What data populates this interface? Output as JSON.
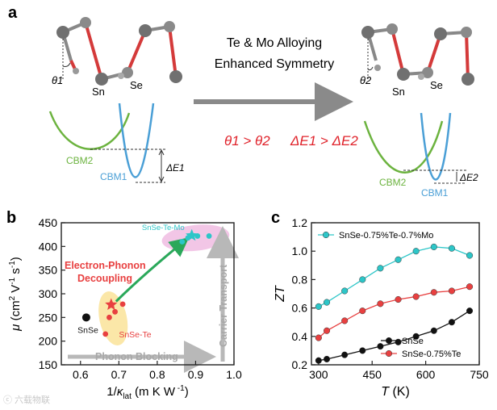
{
  "panel_a": {
    "label": "a",
    "arrow_text_line1": "Te & Mo Alloying",
    "arrow_text_line2": "Enhanced Symmetry",
    "theta_left": "θ1",
    "theta_right": "θ2",
    "sn_label": "Sn",
    "se_label": "Se",
    "cbm2_label": "CBM2",
    "cbm1_label": "CBM1",
    "delta_e1": "ΔE1",
    "delta_e2": "ΔE2",
    "relation_theta": "θ1 > θ2",
    "relation_e": "ΔE1 > ΔE2",
    "colors": {
      "cbm2": "#6cb33f",
      "cbm1": "#4a9fd6",
      "relation": "#e0232b",
      "sn_atom": "#707070",
      "se_atom": "#8a8a8a",
      "bond_grey": "#888888",
      "bond_red": "#d43a3a",
      "arrow": "#8a8a8a"
    }
  },
  "panel_b": {
    "label": "b",
    "annot_decoupling": "Electron-Phonon Decoupling",
    "annot_phonon_blocking": "Phonon Blocking",
    "annot_carrier_transport": "Carrier Transport",
    "colors": {
      "decoupling_text": "#e84040",
      "arrow": "#2aa85a",
      "blocking_arrow": "#b8b8b8",
      "ellipse_yellow": "#fbe7a8",
      "ellipse_pink": "#f2c6e6"
    }
  },
  "panel_c": {
    "label": "c"
  },
  "watermark": "ⓒ 六载物联",
  "chart_data": [
    {
      "type": "scatter",
      "panel": "b",
      "xlabel": "1/κlat (m K W-1)",
      "ylabel": "μ (cm2 V-1 s-1)",
      "xlim": [
        0.55,
        1.0
      ],
      "ylim": [
        150,
        450
      ],
      "x_ticks": [
        "0.6",
        "0.7",
        "0.8",
        "0.9",
        "1.0"
      ],
      "y_ticks": [
        "150",
        "200",
        "250",
        "300",
        "350",
        "400",
        "450"
      ],
      "series": [
        {
          "name": "SnSe",
          "color": "#111111",
          "points": [
            [
              0.615,
              250
            ]
          ]
        },
        {
          "name": "SnSe-Te",
          "color": "#e84040",
          "points": [
            [
              0.665,
              215
            ],
            [
              0.675,
              250
            ],
            [
              0.69,
              262
            ],
            [
              0.71,
              278
            ]
          ]
        },
        {
          "name": "SnSe-Te-Mo",
          "color": "#2dc6c8",
          "points": [
            [
              0.865,
              410
            ],
            [
              0.88,
              418
            ],
            [
              0.905,
              422
            ],
            [
              0.935,
              422
            ]
          ]
        }
      ],
      "stars": [
        {
          "x": 0.68,
          "y": 277,
          "color": "#e84040"
        },
        {
          "x": 0.89,
          "y": 423,
          "color": "#2dc6c8"
        }
      ],
      "grid": false
    },
    {
      "type": "line",
      "panel": "c",
      "xlabel": "T (K)",
      "ylabel": "ZT",
      "xlim": [
        280,
        750
      ],
      "ylim": [
        0.2,
        1.2
      ],
      "x_ticks": [
        "300",
        "450",
        "600",
        "750"
      ],
      "y_ticks": [
        "0.2",
        "0.4",
        "0.6",
        "0.8",
        "1.0",
        "1.2"
      ],
      "legend_position": "top-left and bottom-right",
      "series": [
        {
          "name": "SnSe-0.75%Te-0.7%Mo",
          "color": "#2dc6c8",
          "x": [
            300,
            323,
            373,
            423,
            473,
            523,
            573,
            623,
            673,
            723
          ],
          "y": [
            0.61,
            0.64,
            0.72,
            0.8,
            0.88,
            0.94,
            1.0,
            1.03,
            1.02,
            0.97
          ]
        },
        {
          "name": "SnSe-0.75%Te",
          "color": "#e84040",
          "x": [
            300,
            323,
            373,
            423,
            473,
            523,
            573,
            623,
            673,
            723
          ],
          "y": [
            0.39,
            0.44,
            0.51,
            0.58,
            0.63,
            0.66,
            0.68,
            0.71,
            0.72,
            0.75
          ]
        },
        {
          "name": "SnSe",
          "color": "#111111",
          "x": [
            300,
            323,
            373,
            423,
            473,
            523,
            573,
            623,
            673,
            723
          ],
          "y": [
            0.23,
            0.24,
            0.27,
            0.3,
            0.33,
            0.36,
            0.4,
            0.44,
            0.5,
            0.58
          ]
        }
      ],
      "grid": false
    }
  ]
}
